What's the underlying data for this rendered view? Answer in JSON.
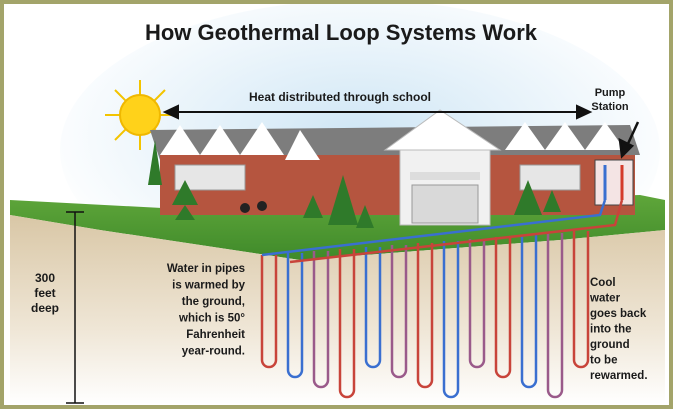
{
  "title": "How Geothermal Loop Systems Work",
  "labels": {
    "heat": "Heat distributed through school",
    "pump": [
      "Pump",
      "Station"
    ],
    "depth": [
      "300",
      "feet",
      "deep"
    ],
    "warm": [
      "Water in pipes",
      "is warmed by",
      "the ground,",
      "which is 50°",
      "Fahrenheit",
      "year-round."
    ],
    "cool": [
      "Cool",
      "water",
      "goes back",
      "into the",
      "ground",
      "to be",
      "rewarmed."
    ]
  }
}
